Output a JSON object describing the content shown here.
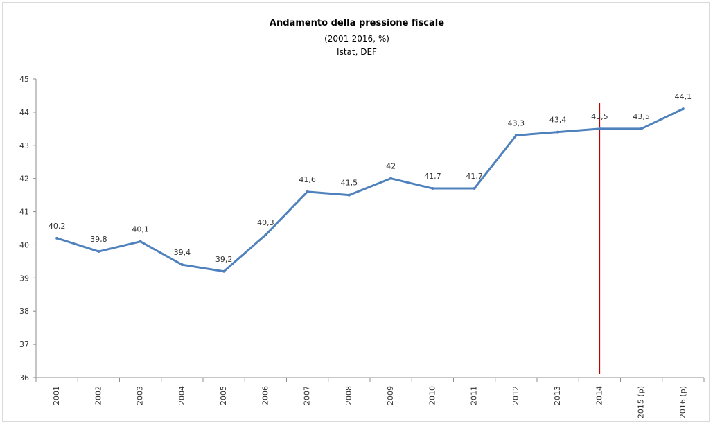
{
  "chart_data": {
    "type": "line",
    "title": "Andamento della pressione fiscale",
    "subtitle": "(2001-2016, %)",
    "source": "Istat, DEF",
    "categories": [
      "2001",
      "2002",
      "2003",
      "2004",
      "2005",
      "2006",
      "2007",
      "2008",
      "2009",
      "2010",
      "2011",
      "2012",
      "2013",
      "2014",
      "2015 (p)",
      "2016 (p)"
    ],
    "series": [
      {
        "values": [
          40.2,
          39.8,
          40.1,
          39.4,
          39.2,
          40.3,
          41.6,
          41.5,
          42.0,
          41.7,
          41.7,
          43.3,
          43.4,
          43.5,
          43.5,
          44.1
        ],
        "labels": [
          "40,2",
          "39,8",
          "40,1",
          "39,4",
          "39,2",
          "40,3",
          "41,6",
          "41,5",
          "42",
          "41,7",
          "41,7",
          "43,3",
          "43,4",
          "43,5",
          "43,5",
          "44,1"
        ]
      }
    ],
    "ylim": [
      36,
      45
    ],
    "yticks": [
      "36",
      "37",
      "38",
      "39",
      "40",
      "41",
      "42",
      "43",
      "44",
      "45"
    ],
    "marker_line_category": "2014",
    "grid": false,
    "legend": "none",
    "colors": {
      "line": "#4F81BD",
      "marker_line": "#C00000",
      "axis": "#8c8c8c"
    }
  }
}
